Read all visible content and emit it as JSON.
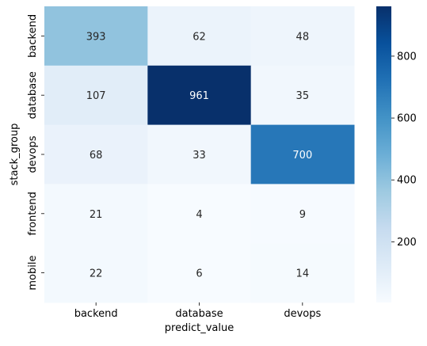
{
  "chart_data": {
    "type": "heatmap",
    "title": "",
    "xlabel": "predict_value",
    "ylabel": "stack_group",
    "x_categories": [
      "backend",
      "database",
      "devops"
    ],
    "y_categories": [
      "backend",
      "database",
      "devops",
      "frontend",
      "mobile"
    ],
    "values": [
      [
        393,
        62,
        48
      ],
      [
        107,
        961,
        35
      ],
      [
        68,
        33,
        700
      ],
      [
        21,
        4,
        9
      ],
      [
        22,
        6,
        14
      ]
    ],
    "colormap": "Blues",
    "colorbar": {
      "vmin": 4,
      "vmax": 961,
      "ticks": [
        200,
        400,
        600,
        800
      ]
    },
    "annotations": true,
    "grid": false
  }
}
